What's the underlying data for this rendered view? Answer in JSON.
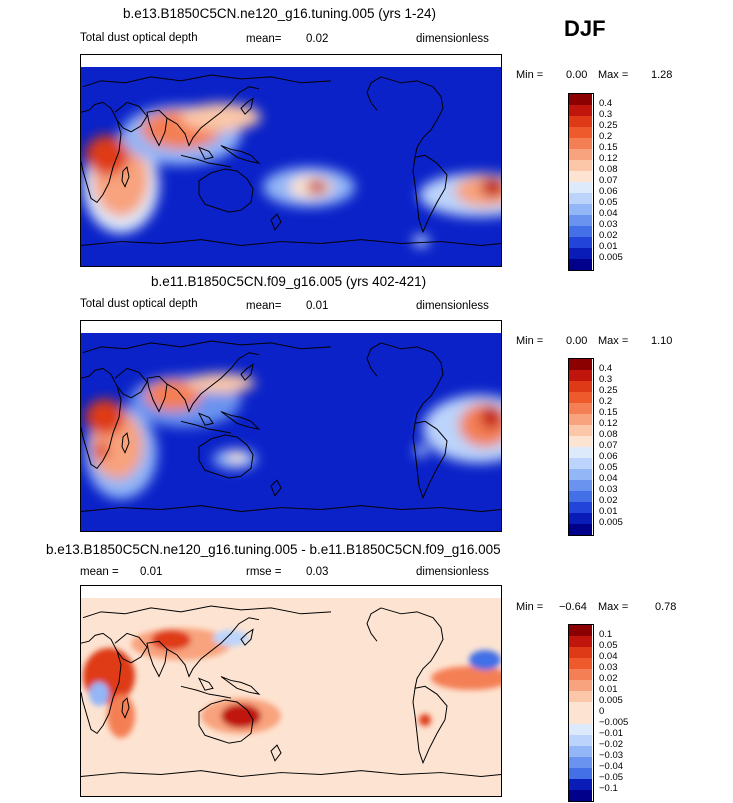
{
  "season": "DJF",
  "panels": [
    {
      "title": "b.e13.B1850C5CN.ne120_g16.tuning.005 (yrs 1-24)",
      "left_label": "Total dust optical depth",
      "mean_label": "mean=",
      "mean_value": "0.02",
      "units": "dimensionless",
      "min_label": "Min =",
      "min_value": "0.00",
      "max_label": "Max =",
      "max_value": "1.28"
    },
    {
      "title": "b.e11.B1850C5CN.f09_g16.005 (yrs 402-421)",
      "left_label": "Total dust optical depth",
      "mean_label": "mean=",
      "mean_value": "0.01",
      "units": "dimensionless",
      "min_label": "Min =",
      "min_value": "0.00",
      "max_label": "Max =",
      "max_value": "1.10"
    },
    {
      "title": "b.e13.B1850C5CN.ne120_g16.tuning.005 - b.e11.B1850C5CN.f09_g16.005",
      "left_label": "mean =",
      "left_value": "0.01",
      "mid_label": "rmse =",
      "mid_value": "0.03",
      "units": "dimensionless",
      "min_label": "Min =",
      "min_value": "−0.64",
      "max_label": "Max =",
      "max_value": "0.78"
    }
  ],
  "colorbars": {
    "abs_levels": [
      "0.4",
      "0.3",
      "0.25",
      "0.2",
      "0.15",
      "0.12",
      "0.08",
      "0.07",
      "0.06",
      "0.05",
      "0.04",
      "0.03",
      "0.02",
      "0.01",
      "0.005"
    ],
    "abs_colors": [
      "#8b0000",
      "#c0150d",
      "#de3a18",
      "#ef5a2c",
      "#f47f54",
      "#f8a37d",
      "#fbc7a8",
      "#fde4d2",
      "#ddeafc",
      "#bcd4fb",
      "#93b6f7",
      "#6a93ef",
      "#4370e6",
      "#2244d8",
      "#0a1cb8",
      "#00008b"
    ],
    "diff_levels": [
      "0.1",
      "0.05",
      "0.04",
      "0.03",
      "0.02",
      "0.01",
      "0.005",
      "0",
      "−0.005",
      "−0.01",
      "−0.02",
      "−0.03",
      "−0.04",
      "−0.05",
      "−0.1"
    ],
    "diff_colors": [
      "#8b0000",
      "#c0150d",
      "#de3a18",
      "#ef5a2c",
      "#f47f54",
      "#f8a37d",
      "#fbc7a8",
      "#fde4d2",
      "#fde4d2",
      "#ddeafc",
      "#bcd4fb",
      "#93b6f7",
      "#6a93ef",
      "#4370e6",
      "#0a1cb8",
      "#00008b"
    ]
  },
  "chart_data": [
    {
      "type": "heatmap",
      "title": "b.e13.B1850C5CN.ne120_g16.tuning.005 (yrs 1-24)",
      "variable": "Total dust optical depth",
      "units": "dimensionless",
      "mean": 0.02,
      "min": 0.0,
      "max": 1.28,
      "contour_levels": [
        0.005,
        0.01,
        0.02,
        0.03,
        0.04,
        0.05,
        0.06,
        0.07,
        0.08,
        0.12,
        0.15,
        0.2,
        0.25,
        0.3,
        0.4
      ]
    },
    {
      "type": "heatmap",
      "title": "b.e11.B1850C5CN.f09_g16.005 (yrs 402-421)",
      "variable": "Total dust optical depth",
      "units": "dimensionless",
      "mean": 0.01,
      "min": 0.0,
      "max": 1.1,
      "contour_levels": [
        0.005,
        0.01,
        0.02,
        0.03,
        0.04,
        0.05,
        0.06,
        0.07,
        0.08,
        0.12,
        0.15,
        0.2,
        0.25,
        0.3,
        0.4
      ]
    },
    {
      "type": "heatmap",
      "title": "b.e13.B1850C5CN.ne120_g16.tuning.005 - b.e11.B1850C5CN.f09_g16.005",
      "units": "dimensionless",
      "mean": 0.01,
      "rmse": 0.03,
      "min": -0.64,
      "max": 0.78,
      "contour_levels": [
        -0.1,
        -0.05,
        -0.04,
        -0.03,
        -0.02,
        -0.01,
        -0.005,
        0,
        0.005,
        0.01,
        0.02,
        0.03,
        0.04,
        0.05,
        0.1
      ]
    }
  ]
}
